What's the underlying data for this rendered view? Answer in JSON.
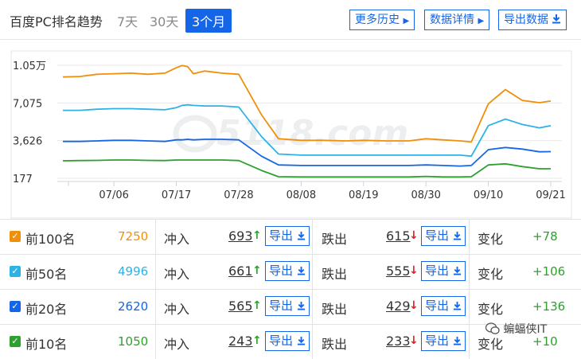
{
  "header": {
    "title": "百度PC排名趋势",
    "ranges": [
      "7天",
      "30天",
      "3个月"
    ],
    "active_range": "3个月",
    "buttons": [
      {
        "label": "更多历史",
        "icon": "caret-right-icon"
      },
      {
        "label": "数据详情",
        "icon": "caret-right-icon"
      },
      {
        "label": "导出数据",
        "icon": "download-icon"
      }
    ]
  },
  "watermark": "5118.com",
  "chart_data": {
    "type": "line",
    "x_ticks": [
      "07/06",
      "07/17",
      "07/28",
      "08/08",
      "08/19",
      "08/30",
      "09/10",
      "09/21"
    ],
    "y_ticks": [
      "177",
      "3,626",
      "7,075",
      "1.05万"
    ],
    "ylim": [
      177,
      10524
    ],
    "grid": "horizontal",
    "x": [
      "06/27",
      "06/30",
      "07/03",
      "07/06",
      "07/09",
      "07/12",
      "07/15",
      "07/17",
      "07/18",
      "07/19",
      "07/20",
      "07/22",
      "07/25",
      "07/28",
      "08/01",
      "08/04",
      "08/08",
      "08/12",
      "08/16",
      "08/19",
      "08/23",
      "08/27",
      "08/30",
      "09/02",
      "09/05",
      "09/07",
      "09/10",
      "09/13",
      "09/16",
      "09/19",
      "09/21"
    ],
    "series": [
      {
        "name": "前100名",
        "color": "#f0900a",
        "values": [
          9450,
          9500,
          9700,
          9750,
          9800,
          9700,
          9800,
          10300,
          10500,
          10400,
          9750,
          10000,
          9800,
          9700,
          6000,
          3800,
          3650,
          3650,
          3600,
          3650,
          3600,
          3600,
          3800,
          3700,
          3600,
          3500,
          7000,
          8300,
          7300,
          7100,
          7250
        ]
      },
      {
        "name": "前50名",
        "color": "#2bb3e8",
        "values": [
          6400,
          6400,
          6500,
          6550,
          6550,
          6500,
          6450,
          6650,
          6850,
          6900,
          6850,
          6800,
          6800,
          6700,
          4000,
          2400,
          2300,
          2300,
          2300,
          2300,
          2300,
          2300,
          2300,
          2300,
          2300,
          2200,
          5000,
          5600,
          5100,
          4800,
          4996
        ]
      },
      {
        "name": "前20名",
        "color": "#1565e8",
        "values": [
          3550,
          3550,
          3600,
          3650,
          3650,
          3600,
          3550,
          3700,
          3700,
          3750,
          3700,
          3750,
          3750,
          3700,
          2200,
          1400,
          1350,
          1350,
          1350,
          1350,
          1350,
          1350,
          1400,
          1350,
          1300,
          1350,
          2800,
          3000,
          2850,
          2600,
          2620
        ]
      },
      {
        "name": "前10名",
        "color": "#2ea02e",
        "values": [
          1780,
          1800,
          1820,
          1850,
          1850,
          1820,
          1800,
          1850,
          1850,
          1850,
          1850,
          1850,
          1850,
          1800,
          900,
          320,
          300,
          300,
          300,
          300,
          300,
          300,
          350,
          300,
          300,
          320,
          1400,
          1500,
          1250,
          1050,
          1050
        ]
      }
    ]
  },
  "rows": [
    {
      "name": "前100名",
      "count": "7250",
      "color": "#f0900a",
      "in_label": "冲入",
      "in": "693",
      "export": "导出",
      "out_label": "跌出",
      "out": "615",
      "change_label": "变化",
      "change": "+78"
    },
    {
      "name": "前50名",
      "count": "4996",
      "color": "#2bb3e8",
      "in_label": "冲入",
      "in": "661",
      "export": "导出",
      "out_label": "跌出",
      "out": "555",
      "change_label": "变化",
      "change": "+106"
    },
    {
      "name": "前20名",
      "count": "2620",
      "color": "#1565e8",
      "in_label": "冲入",
      "in": "565",
      "export": "导出",
      "out_label": "跌出",
      "out": "429",
      "change_label": "变化",
      "change": "+136"
    },
    {
      "name": "前10名",
      "count": "1050",
      "color": "#2ea02e",
      "in_label": "冲入",
      "in": "243",
      "export": "导出",
      "out_label": "跌出",
      "out": "233",
      "change_label": "变化",
      "change": "+10"
    }
  ],
  "wechat_label": "蝙蝠侠IT"
}
